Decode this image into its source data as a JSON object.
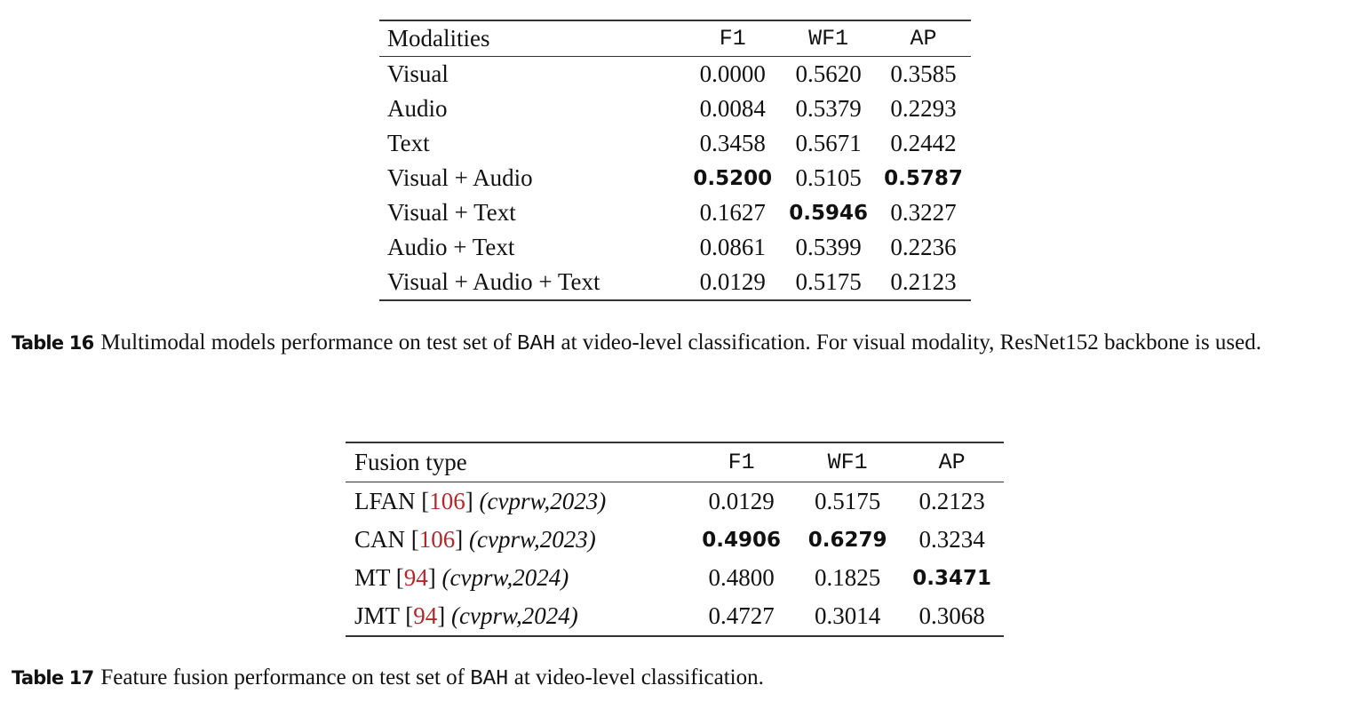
{
  "table16": {
    "headers": [
      "Modalities",
      "F1",
      "WF1",
      "AP"
    ],
    "rows": [
      {
        "label": "Visual",
        "f1": "0.0000",
        "wf1": "0.5620",
        "ap": "0.3585",
        "bold": []
      },
      {
        "label": "Audio",
        "f1": "0.0084",
        "wf1": "0.5379",
        "ap": "0.2293",
        "bold": []
      },
      {
        "label": "Text",
        "f1": "0.3458",
        "wf1": "0.5671",
        "ap": "0.2442",
        "bold": []
      },
      {
        "label": "Visual + Audio",
        "f1": "0.5200",
        "wf1": "0.5105",
        "ap": "0.5787",
        "bold": [
          "f1",
          "ap"
        ]
      },
      {
        "label": "Visual + Text",
        "f1": "0.1627",
        "wf1": "0.5946",
        "ap": "0.3227",
        "bold": [
          "wf1"
        ]
      },
      {
        "label": "Audio + Text",
        "f1": "0.0861",
        "wf1": "0.5399",
        "ap": "0.2236",
        "bold": []
      },
      {
        "label": "Visual + Audio + Text",
        "f1": "0.0129",
        "wf1": "0.5175",
        "ap": "0.2123",
        "bold": []
      }
    ],
    "caption": {
      "tag": "Table 16",
      "text_before_code": "Multimodal models performance on test set of ",
      "code": "BAH",
      "text_after_code": " at video-level classification. For visual modality, ResNet152 backbone is used."
    }
  },
  "table17": {
    "headers": [
      "Fusion type",
      "F1",
      "WF1",
      "AP"
    ],
    "rows": [
      {
        "method": "LFAN",
        "cite": "106",
        "venue": "(cvprw,2023)",
        "f1": "0.0129",
        "wf1": "0.5175",
        "ap": "0.2123",
        "bold": []
      },
      {
        "method": "CAN",
        "cite": "106",
        "venue": "(cvprw,2023)",
        "f1": "0.4906",
        "wf1": "0.6279",
        "ap": "0.3234",
        "bold": [
          "f1",
          "wf1"
        ]
      },
      {
        "method": "MT",
        "cite": "94",
        "venue": "(cvprw,2024)",
        "f1": "0.4800",
        "wf1": "0.1825",
        "ap": "0.3471",
        "bold": [
          "ap"
        ]
      },
      {
        "method": "JMT",
        "cite": "94",
        "venue": "(cvprw,2024)",
        "f1": "0.4727",
        "wf1": "0.3014",
        "ap": "0.3068",
        "bold": []
      }
    ],
    "caption": {
      "tag": "Table 17",
      "text_before_code": "Feature fusion performance on test set of ",
      "code": "BAH",
      "text_after_code": " at video-level classification."
    }
  },
  "colors": {
    "citation": "#b3262a",
    "text": "#111111",
    "rule": "#333333"
  }
}
